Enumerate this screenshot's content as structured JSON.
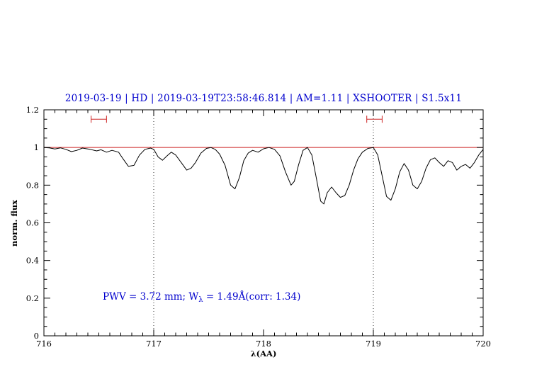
{
  "colors": {
    "accent_blue": "#0000cd",
    "accent_red": "#cc2222",
    "curve_black": "#000000"
  },
  "annotation": {
    "pre": "PWV = 3.72 mm; W",
    "sub": "λ",
    "post": " = 1.49Å(corr: 1.34)"
  },
  "chart_data": {
    "type": "line",
    "title": "2019-03-19 | HD | 2019-03-19T23:58:46.814 | AM=1.11 | XSHOOTER | S1.5x11",
    "xlabel": "λ(AA)",
    "ylabel": "norm. flux",
    "xlim": [
      716,
      720
    ],
    "ylim": [
      0,
      1.2
    ],
    "xticks": {
      "values": [
        716,
        717,
        718,
        719,
        720
      ],
      "labels": [
        "716",
        "717",
        "718",
        "719",
        "720"
      ]
    },
    "yticks": {
      "values": [
        0,
        0.2,
        0.4,
        0.6,
        0.8,
        1.0,
        1.2
      ],
      "labels": [
        "0",
        "0.2",
        "0.4",
        "0.6",
        "0.8",
        "1",
        "1.2"
      ]
    },
    "minor_x_step": 0.1,
    "minor_y_step": 0.05,
    "grid": "dotted vertical lines at 717 and 719 only",
    "legend": "none",
    "vlines": [
      717,
      719
    ],
    "hline": 1.0,
    "range_markers": [
      {
        "x1": 716.43,
        "x2": 716.57,
        "y": 1.15
      },
      {
        "x1": 718.94,
        "x2": 719.08,
        "y": 1.15
      }
    ],
    "series": [
      {
        "name": "spectrum",
        "x": [
          716.0,
          716.05,
          716.1,
          716.15,
          716.2,
          716.25,
          716.3,
          716.35,
          716.42,
          716.48,
          716.52,
          716.57,
          716.62,
          716.68,
          716.72,
          716.77,
          716.82,
          716.87,
          716.92,
          716.97,
          717.0,
          717.04,
          717.08,
          717.12,
          717.16,
          717.2,
          717.25,
          717.3,
          717.34,
          717.38,
          717.43,
          717.48,
          717.52,
          717.56,
          717.6,
          717.65,
          717.7,
          717.74,
          717.78,
          717.82,
          717.86,
          717.9,
          717.95,
          718.0,
          718.05,
          718.1,
          718.15,
          718.2,
          718.25,
          718.28,
          718.32,
          718.36,
          718.4,
          718.44,
          718.48,
          718.52,
          718.55,
          718.58,
          718.62,
          718.66,
          718.7,
          718.74,
          718.78,
          718.82,
          718.86,
          718.9,
          718.95,
          719.0,
          719.04,
          719.08,
          719.12,
          719.16,
          719.2,
          719.24,
          719.28,
          719.32,
          719.36,
          719.4,
          719.44,
          719.48,
          719.52,
          719.56,
          719.6,
          719.64,
          719.68,
          719.72,
          719.76,
          719.8,
          719.84,
          719.88,
          719.92,
          719.96,
          720.0
        ],
        "y": [
          1.0,
          0.998,
          0.992,
          0.998,
          0.99,
          0.978,
          0.985,
          0.997,
          0.99,
          0.982,
          0.988,
          0.975,
          0.985,
          0.975,
          0.94,
          0.9,
          0.905,
          0.96,
          0.99,
          0.997,
          0.99,
          0.95,
          0.932,
          0.955,
          0.975,
          0.96,
          0.92,
          0.88,
          0.89,
          0.92,
          0.97,
          0.995,
          1.0,
          0.99,
          0.965,
          0.905,
          0.8,
          0.78,
          0.84,
          0.93,
          0.97,
          0.985,
          0.975,
          0.993,
          1.0,
          0.99,
          0.955,
          0.87,
          0.8,
          0.82,
          0.91,
          0.985,
          1.0,
          0.96,
          0.84,
          0.715,
          0.7,
          0.76,
          0.79,
          0.76,
          0.735,
          0.745,
          0.8,
          0.88,
          0.94,
          0.975,
          0.995,
          1.0,
          0.96,
          0.85,
          0.74,
          0.72,
          0.78,
          0.87,
          0.915,
          0.88,
          0.8,
          0.78,
          0.82,
          0.89,
          0.935,
          0.945,
          0.92,
          0.9,
          0.93,
          0.92,
          0.88,
          0.9,
          0.91,
          0.89,
          0.92,
          0.96,
          0.99
        ]
      }
    ]
  }
}
